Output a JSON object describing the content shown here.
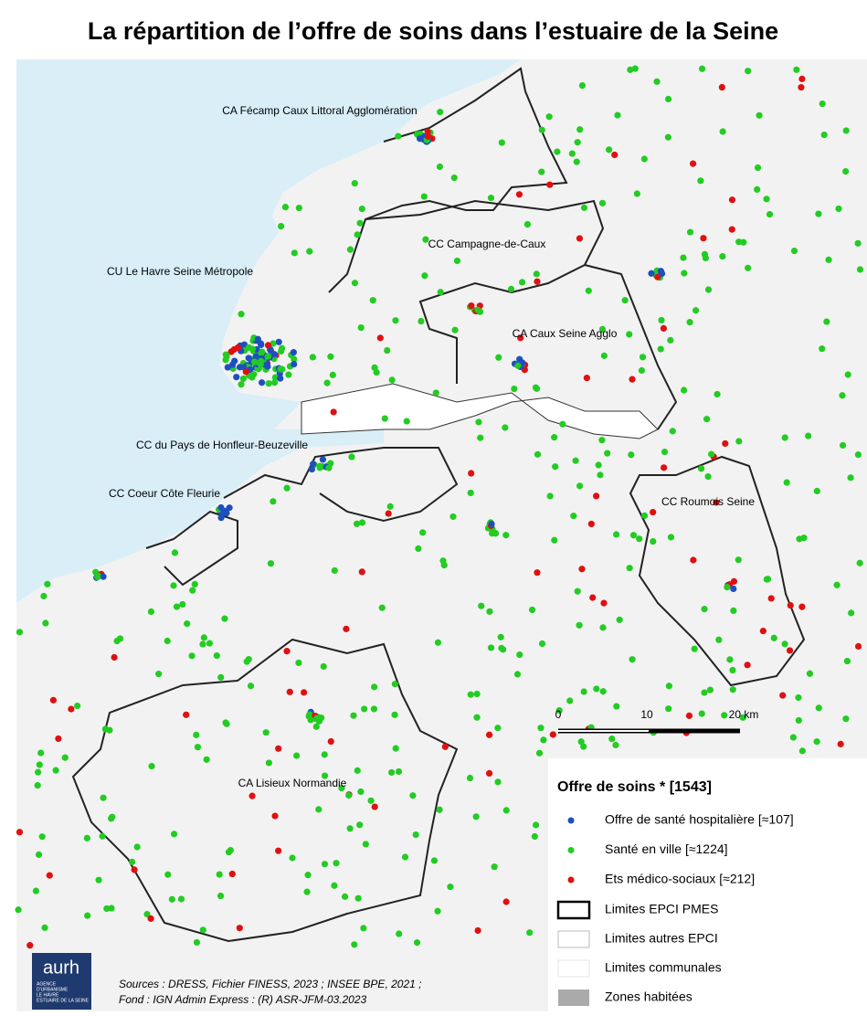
{
  "title": "La répartition de l’offre de soins dans l’estuaire de la Seine",
  "map": {
    "labels": [
      "CA Fécamp Caux Littoral Agglomération",
      "CC Campagne-de-Caux",
      "CU Le Havre Seine Métropole",
      "CA Caux Seine Agglo",
      "CC du Pays de Honfleur-Beuzeville",
      "CC Coeur Côte Fleurie",
      "CC Roumois Seine",
      "CA Lisieux Normandie"
    ]
  },
  "scale": {
    "ticks": [
      "0",
      "10",
      "20 km"
    ]
  },
  "legend": {
    "title": "Offre de soins * [1543]",
    "points": [
      {
        "label": "Offre de santé hospitalière [≈107]",
        "color": "#1f4fbf"
      },
      {
        "label": "Santé en ville [≈1224]",
        "color": "#22cc22"
      },
      {
        "label": "Ets médico-sociaux [≈212]",
        "color": "#e01010"
      }
    ],
    "areas": [
      "Limites EPCI PMES",
      "Limites autres EPCI",
      "Limites communales",
      "Zones habitées"
    ]
  },
  "sources": [
    "Sources : DRESS, Fichier FINESS, 2023 ; INSEE BPE, 2021 ;",
    "Fond : IGN Admin Express : (R) ASR-JFM-03.2023"
  ],
  "logo": {
    "name": "aurh",
    "tagline": [
      "AGENCE",
      "D'URBANISME",
      "LE HAVRE",
      "ESTUAIRE DE LA SEINE"
    ]
  }
}
